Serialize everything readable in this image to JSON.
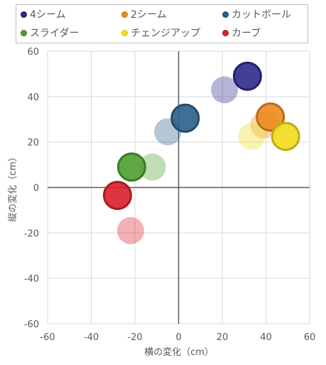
{
  "chart_data": {
    "type": "scatter",
    "xlabel": "横の変化（cm）",
    "ylabel": "縦の変化（cm）",
    "xlim": [
      -60,
      60
    ],
    "ylim": [
      -60,
      60
    ],
    "xticks": [
      -60,
      -40,
      -20,
      0,
      20,
      40,
      60
    ],
    "yticks": [
      -60,
      -40,
      -20,
      0,
      20,
      40,
      60
    ],
    "grid": true,
    "legend_position": "top",
    "series": [
      {
        "name": "4シーム",
        "color": "#2e2a8c",
        "points": [
          {
            "x": 21,
            "y": 43,
            "faded": true
          },
          {
            "x": 31.5,
            "y": 49,
            "faded": false
          }
        ]
      },
      {
        "name": "2シーム",
        "color": "#ed8a1c",
        "points": [
          {
            "x": 39,
            "y": 27.5,
            "faded": true
          },
          {
            "x": 42,
            "y": 31,
            "faded": false
          }
        ]
      },
      {
        "name": "カットボール",
        "color": "#2b5f8a",
        "points": [
          {
            "x": -5,
            "y": 24.5,
            "faded": true
          },
          {
            "x": 3,
            "y": 30.5,
            "faded": false
          }
        ]
      },
      {
        "name": "スライダー",
        "color": "#4e9f2f",
        "points": [
          {
            "x": -12,
            "y": 9,
            "faded": true
          },
          {
            "x": -21.5,
            "y": 9,
            "faded": false
          }
        ]
      },
      {
        "name": "チェンジアップ",
        "color": "#f2dc1c",
        "points": [
          {
            "x": 33.5,
            "y": 22.5,
            "faded": true
          },
          {
            "x": 49,
            "y": 22.5,
            "faded": false
          }
        ]
      },
      {
        "name": "カーブ",
        "color": "#d9202c",
        "points": [
          {
            "x": -22,
            "y": -19,
            "faded": true
          },
          {
            "x": -28,
            "y": -3.5,
            "faded": false
          }
        ]
      }
    ]
  }
}
